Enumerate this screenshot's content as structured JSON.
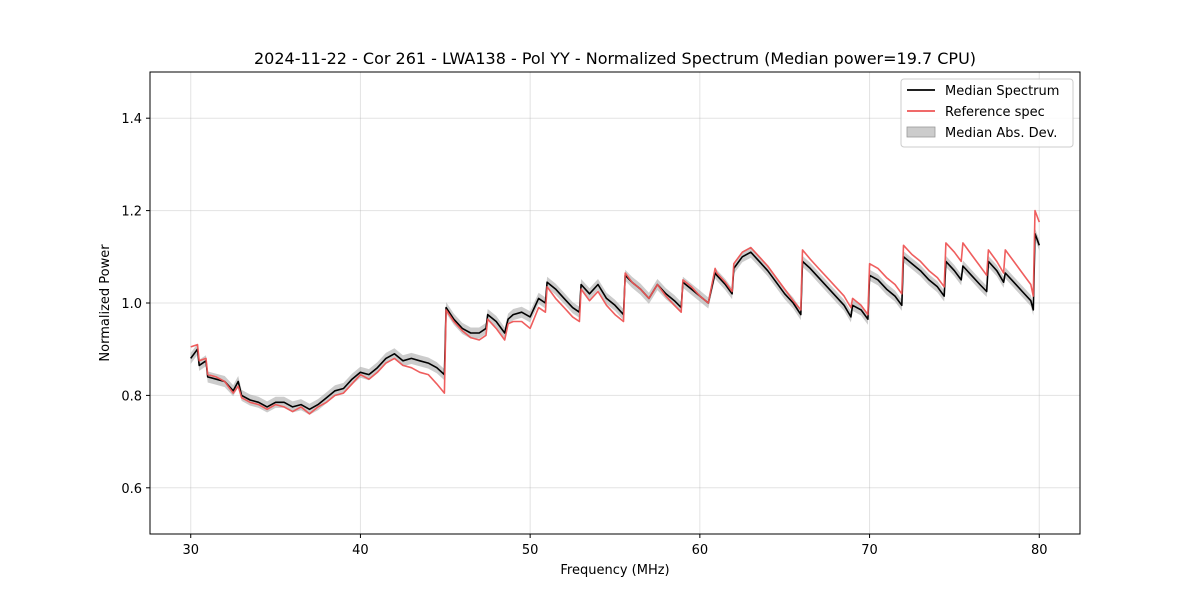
{
  "chart_data": {
    "type": "line",
    "title": "2024-11-22 - Cor 261 - LWA138 - Pol YY - Normalized Spectrum (Median power=19.7 CPU)",
    "xlabel": "Frequency (MHz)",
    "ylabel": "Normalized Power",
    "xlim": [
      27.6,
      82.4
    ],
    "ylim": [
      0.5,
      1.5
    ],
    "x_ticks": [
      30,
      40,
      50,
      60,
      70,
      80
    ],
    "y_ticks": [
      0.6,
      0.8,
      1.0,
      1.2,
      1.4
    ],
    "x_tick_labels": [
      "30",
      "40",
      "50",
      "60",
      "70",
      "80"
    ],
    "y_tick_labels": [
      "0.6",
      "0.8",
      "1.0",
      "1.2",
      "1.4"
    ],
    "grid": true,
    "legend_position": "top-right",
    "series": [
      {
        "name": "Median Spectrum",
        "color": "#000000",
        "x": [
          30.0,
          30.4,
          30.5,
          30.9,
          31.0,
          31.5,
          32.0,
          32.5,
          32.8,
          33.0,
          33.5,
          34.0,
          34.5,
          35.0,
          35.5,
          36.0,
          36.5,
          37.0,
          37.5,
          38.0,
          38.5,
          39.0,
          39.5,
          40.0,
          40.5,
          41.0,
          41.5,
          42.0,
          42.5,
          43.0,
          43.5,
          44.0,
          44.5,
          44.95,
          45.05,
          45.5,
          46.0,
          46.5,
          47.0,
          47.4,
          47.5,
          48.0,
          48.5,
          48.7,
          49.0,
          49.5,
          50.0,
          50.5,
          50.9,
          51.0,
          51.5,
          52.0,
          52.5,
          52.9,
          53.0,
          53.5,
          54.0,
          54.5,
          55.0,
          55.5,
          55.6,
          56.0,
          56.5,
          57.0,
          57.5,
          58.0,
          58.5,
          58.9,
          59.0,
          59.5,
          60.0,
          60.5,
          60.9,
          61.0,
          61.5,
          61.9,
          62.0,
          62.5,
          63.0,
          63.5,
          64.0,
          64.5,
          65.0,
          65.5,
          65.95,
          66.05,
          66.5,
          67.0,
          67.5,
          68.0,
          68.5,
          68.9,
          69.0,
          69.5,
          69.9,
          70.0,
          70.5,
          71.0,
          71.5,
          71.9,
          72.0,
          72.5,
          73.0,
          73.5,
          74.0,
          74.4,
          74.5,
          75.0,
          75.4,
          75.5,
          76.0,
          76.5,
          76.9,
          77.0,
          77.5,
          77.9,
          78.0,
          78.5,
          79.0,
          79.5,
          79.65,
          79.75,
          80.0
        ],
        "values": [
          0.88,
          0.9,
          0.865,
          0.875,
          0.84,
          0.835,
          0.83,
          0.81,
          0.83,
          0.8,
          0.79,
          0.785,
          0.775,
          0.785,
          0.785,
          0.775,
          0.78,
          0.77,
          0.78,
          0.795,
          0.81,
          0.815,
          0.835,
          0.85,
          0.845,
          0.86,
          0.88,
          0.89,
          0.875,
          0.88,
          0.875,
          0.87,
          0.86,
          0.845,
          0.99,
          0.965,
          0.945,
          0.935,
          0.935,
          0.945,
          0.975,
          0.96,
          0.935,
          0.965,
          0.975,
          0.98,
          0.97,
          1.01,
          1.0,
          1.045,
          1.03,
          1.01,
          0.99,
          0.98,
          1.04,
          1.02,
          1.04,
          1.01,
          0.995,
          0.975,
          1.06,
          1.045,
          1.03,
          1.01,
          1.04,
          1.02,
          1.005,
          0.99,
          1.045,
          1.03,
          1.015,
          1.0,
          1.065,
          1.06,
          1.04,
          1.02,
          1.075,
          1.1,
          1.11,
          1.09,
          1.07,
          1.045,
          1.02,
          1.0,
          0.975,
          1.09,
          1.075,
          1.055,
          1.035,
          1.015,
          0.995,
          0.97,
          0.995,
          0.985,
          0.965,
          1.06,
          1.05,
          1.03,
          1.015,
          0.995,
          1.1,
          1.085,
          1.07,
          1.05,
          1.035,
          1.015,
          1.09,
          1.07,
          1.05,
          1.08,
          1.06,
          1.04,
          1.025,
          1.09,
          1.07,
          1.045,
          1.065,
          1.045,
          1.025,
          1.005,
          0.985,
          1.15,
          1.125
        ]
      },
      {
        "name": "Reference spec",
        "color": "#ee5555",
        "x": [
          30.0,
          30.4,
          30.5,
          30.9,
          31.0,
          31.5,
          32.0,
          32.5,
          32.8,
          33.0,
          33.5,
          34.0,
          34.5,
          35.0,
          35.5,
          36.0,
          36.5,
          37.0,
          37.5,
          38.0,
          38.5,
          39.0,
          39.5,
          40.0,
          40.5,
          41.0,
          41.5,
          42.0,
          42.5,
          43.0,
          43.5,
          44.0,
          44.5,
          44.95,
          45.05,
          45.5,
          46.0,
          46.5,
          47.0,
          47.4,
          47.5,
          48.0,
          48.5,
          48.7,
          49.0,
          49.5,
          50.0,
          50.5,
          50.9,
          51.0,
          51.5,
          52.0,
          52.5,
          52.9,
          53.0,
          53.5,
          54.0,
          54.5,
          55.0,
          55.5,
          55.6,
          56.0,
          56.5,
          57.0,
          57.5,
          58.0,
          58.5,
          58.9,
          59.0,
          59.5,
          60.0,
          60.5,
          60.9,
          61.0,
          61.5,
          61.9,
          62.0,
          62.5,
          63.0,
          63.5,
          64.0,
          64.5,
          65.0,
          65.5,
          65.95,
          66.05,
          66.5,
          67.0,
          67.5,
          68.0,
          68.5,
          68.9,
          69.0,
          69.5,
          69.9,
          70.0,
          70.5,
          71.0,
          71.5,
          71.9,
          72.0,
          72.5,
          73.0,
          73.5,
          74.0,
          74.4,
          74.5,
          75.0,
          75.4,
          75.5,
          76.0,
          76.5,
          76.9,
          77.0,
          77.5,
          77.9,
          78.0,
          78.5,
          79.0,
          79.5,
          79.65,
          79.75,
          80.0
        ],
        "values": [
          0.905,
          0.91,
          0.875,
          0.88,
          0.845,
          0.84,
          0.83,
          0.805,
          0.82,
          0.795,
          0.785,
          0.78,
          0.77,
          0.78,
          0.775,
          0.765,
          0.775,
          0.76,
          0.775,
          0.785,
          0.8,
          0.805,
          0.825,
          0.845,
          0.835,
          0.85,
          0.87,
          0.88,
          0.865,
          0.86,
          0.85,
          0.845,
          0.825,
          0.805,
          0.985,
          0.96,
          0.94,
          0.925,
          0.92,
          0.93,
          0.965,
          0.945,
          0.92,
          0.955,
          0.96,
          0.96,
          0.945,
          0.99,
          0.98,
          1.035,
          1.01,
          0.99,
          0.97,
          0.96,
          1.03,
          1.005,
          1.025,
          0.995,
          0.975,
          0.96,
          1.065,
          1.045,
          1.03,
          1.01,
          1.04,
          1.015,
          0.995,
          0.98,
          1.05,
          1.035,
          1.015,
          1.0,
          1.075,
          1.065,
          1.045,
          1.025,
          1.085,
          1.11,
          1.12,
          1.1,
          1.08,
          1.055,
          1.03,
          1.005,
          0.985,
          1.115,
          1.095,
          1.075,
          1.055,
          1.035,
          1.015,
          0.99,
          1.01,
          0.995,
          0.975,
          1.085,
          1.075,
          1.055,
          1.04,
          1.02,
          1.125,
          1.105,
          1.09,
          1.07,
          1.055,
          1.035,
          1.13,
          1.11,
          1.09,
          1.13,
          1.105,
          1.08,
          1.06,
          1.115,
          1.09,
          1.065,
          1.115,
          1.09,
          1.065,
          1.04,
          1.015,
          1.2,
          1.175
        ]
      }
    ],
    "band": {
      "name": "Median Abs. Dev.",
      "color": "#aaaaaa",
      "halfwidth": 0.012
    }
  }
}
